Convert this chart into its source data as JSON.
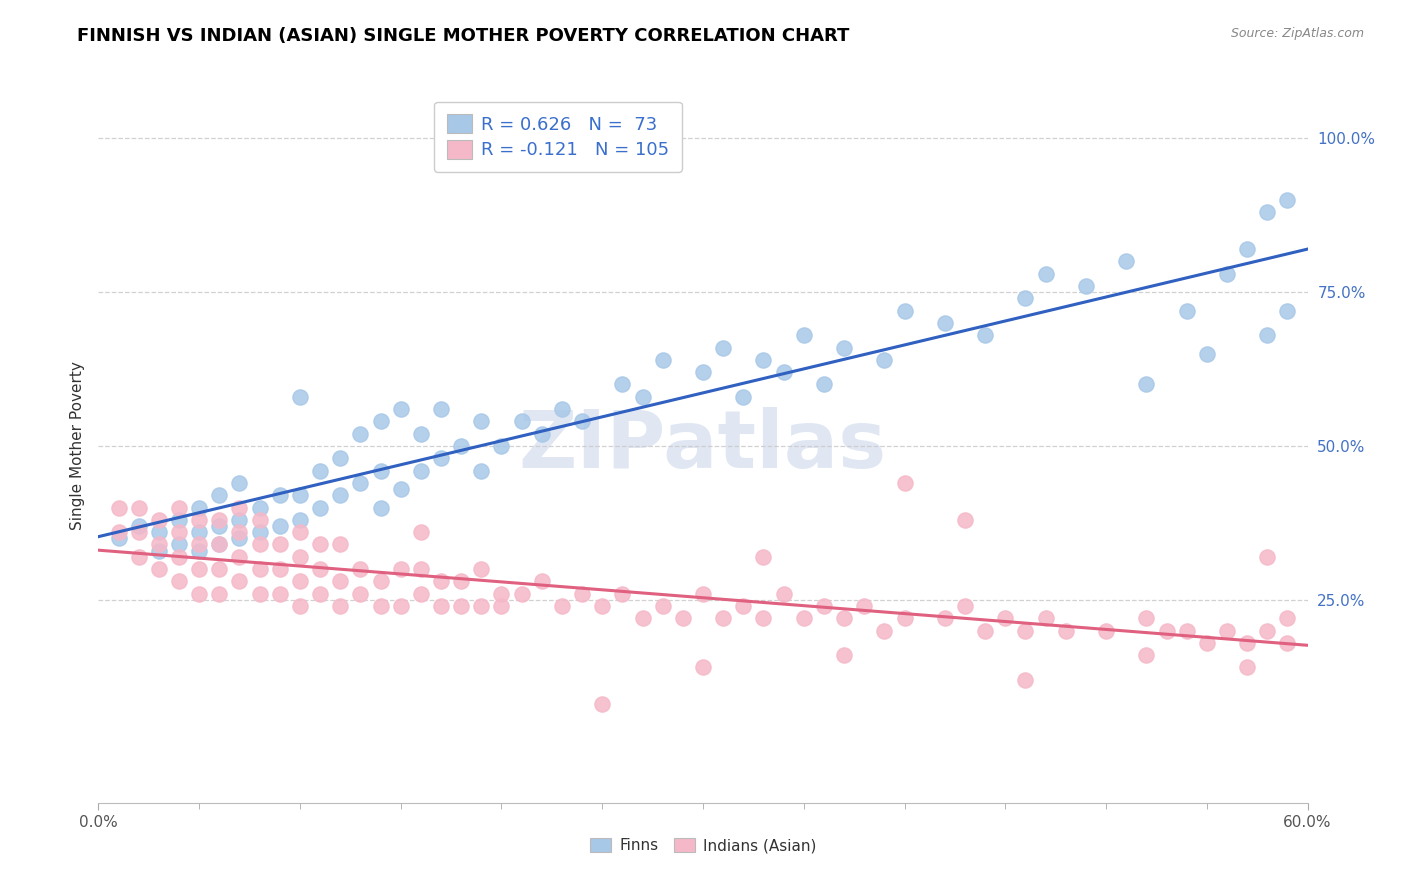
{
  "title": "FINNISH VS INDIAN (ASIAN) SINGLE MOTHER POVERTY CORRELATION CHART",
  "source": "Source: ZipAtlas.com",
  "ylabel": "Single Mother Poverty",
  "legend_labels": [
    "Finns",
    "Indians (Asian)"
  ],
  "legend_R_finn": "R = 0.626",
  "legend_R_indian": "R = -0.121",
  "legend_N_finn": "N =  73",
  "legend_N_indian": "N = 105",
  "finn_color": "#a8c8e8",
  "indian_color": "#f5b8c8",
  "finn_line_color": "#3060c0",
  "indian_line_color": "#e06080",
  "watermark": "ZIPatlas",
  "xlim": [
    0.0,
    0.6
  ],
  "ylim": [
    -0.08,
    1.08
  ],
  "y_ticks": [
    0.25,
    0.5,
    0.75,
    1.0
  ],
  "y_tick_labels": [
    "25.0%",
    "50.0%",
    "75.0%",
    "100.0%"
  ],
  "finn_scatter_x": [
    0.01,
    0.02,
    0.03,
    0.03,
    0.04,
    0.04,
    0.05,
    0.05,
    0.05,
    0.06,
    0.06,
    0.06,
    0.07,
    0.07,
    0.07,
    0.08,
    0.08,
    0.09,
    0.09,
    0.1,
    0.1,
    0.1,
    0.11,
    0.11,
    0.12,
    0.12,
    0.13,
    0.13,
    0.14,
    0.14,
    0.14,
    0.15,
    0.15,
    0.16,
    0.16,
    0.17,
    0.17,
    0.18,
    0.19,
    0.19,
    0.2,
    0.21,
    0.22,
    0.23,
    0.24,
    0.26,
    0.27,
    0.28,
    0.3,
    0.31,
    0.32,
    0.33,
    0.34,
    0.35,
    0.36,
    0.37,
    0.39,
    0.4,
    0.42,
    0.44,
    0.46,
    0.47,
    0.49,
    0.51,
    0.52,
    0.54,
    0.55,
    0.56,
    0.57,
    0.58,
    0.58,
    0.59,
    0.59
  ],
  "finn_scatter_y": [
    0.35,
    0.37,
    0.33,
    0.36,
    0.34,
    0.38,
    0.33,
    0.36,
    0.4,
    0.34,
    0.37,
    0.42,
    0.35,
    0.38,
    0.44,
    0.36,
    0.4,
    0.37,
    0.42,
    0.38,
    0.42,
    0.58,
    0.4,
    0.46,
    0.42,
    0.48,
    0.44,
    0.52,
    0.4,
    0.46,
    0.54,
    0.43,
    0.56,
    0.46,
    0.52,
    0.48,
    0.56,
    0.5,
    0.46,
    0.54,
    0.5,
    0.54,
    0.52,
    0.56,
    0.54,
    0.6,
    0.58,
    0.64,
    0.62,
    0.66,
    0.58,
    0.64,
    0.62,
    0.68,
    0.6,
    0.66,
    0.64,
    0.72,
    0.7,
    0.68,
    0.74,
    0.78,
    0.76,
    0.8,
    0.6,
    0.72,
    0.65,
    0.78,
    0.82,
    0.68,
    0.88,
    0.72,
    0.9
  ],
  "indian_scatter_x": [
    0.01,
    0.01,
    0.02,
    0.02,
    0.02,
    0.03,
    0.03,
    0.03,
    0.04,
    0.04,
    0.04,
    0.04,
    0.05,
    0.05,
    0.05,
    0.05,
    0.06,
    0.06,
    0.06,
    0.06,
    0.07,
    0.07,
    0.07,
    0.07,
    0.08,
    0.08,
    0.08,
    0.08,
    0.09,
    0.09,
    0.09,
    0.1,
    0.1,
    0.1,
    0.1,
    0.11,
    0.11,
    0.11,
    0.12,
    0.12,
    0.12,
    0.13,
    0.13,
    0.14,
    0.14,
    0.15,
    0.15,
    0.16,
    0.16,
    0.17,
    0.17,
    0.18,
    0.18,
    0.19,
    0.19,
    0.2,
    0.21,
    0.22,
    0.23,
    0.24,
    0.25,
    0.26,
    0.27,
    0.28,
    0.29,
    0.3,
    0.31,
    0.32,
    0.33,
    0.34,
    0.35,
    0.36,
    0.37,
    0.38,
    0.39,
    0.4,
    0.42,
    0.43,
    0.44,
    0.45,
    0.46,
    0.47,
    0.48,
    0.5,
    0.52,
    0.53,
    0.54,
    0.55,
    0.56,
    0.57,
    0.58,
    0.58,
    0.59,
    0.59,
    0.43,
    0.25,
    0.3,
    0.33,
    0.2,
    0.16,
    0.37,
    0.4,
    0.46,
    0.52,
    0.57
  ],
  "indian_scatter_y": [
    0.36,
    0.4,
    0.32,
    0.36,
    0.4,
    0.3,
    0.34,
    0.38,
    0.28,
    0.32,
    0.36,
    0.4,
    0.26,
    0.3,
    0.34,
    0.38,
    0.26,
    0.3,
    0.34,
    0.38,
    0.28,
    0.32,
    0.36,
    0.4,
    0.26,
    0.3,
    0.34,
    0.38,
    0.26,
    0.3,
    0.34,
    0.24,
    0.28,
    0.32,
    0.36,
    0.26,
    0.3,
    0.34,
    0.24,
    0.28,
    0.34,
    0.26,
    0.3,
    0.24,
    0.28,
    0.24,
    0.3,
    0.26,
    0.3,
    0.24,
    0.28,
    0.24,
    0.28,
    0.24,
    0.3,
    0.24,
    0.26,
    0.28,
    0.24,
    0.26,
    0.24,
    0.26,
    0.22,
    0.24,
    0.22,
    0.26,
    0.22,
    0.24,
    0.22,
    0.26,
    0.22,
    0.24,
    0.22,
    0.24,
    0.2,
    0.22,
    0.22,
    0.24,
    0.2,
    0.22,
    0.2,
    0.22,
    0.2,
    0.2,
    0.22,
    0.2,
    0.2,
    0.18,
    0.2,
    0.18,
    0.2,
    0.32,
    0.18,
    0.22,
    0.38,
    0.08,
    0.14,
    0.32,
    0.26,
    0.36,
    0.16,
    0.44,
    0.12,
    0.16,
    0.14
  ]
}
